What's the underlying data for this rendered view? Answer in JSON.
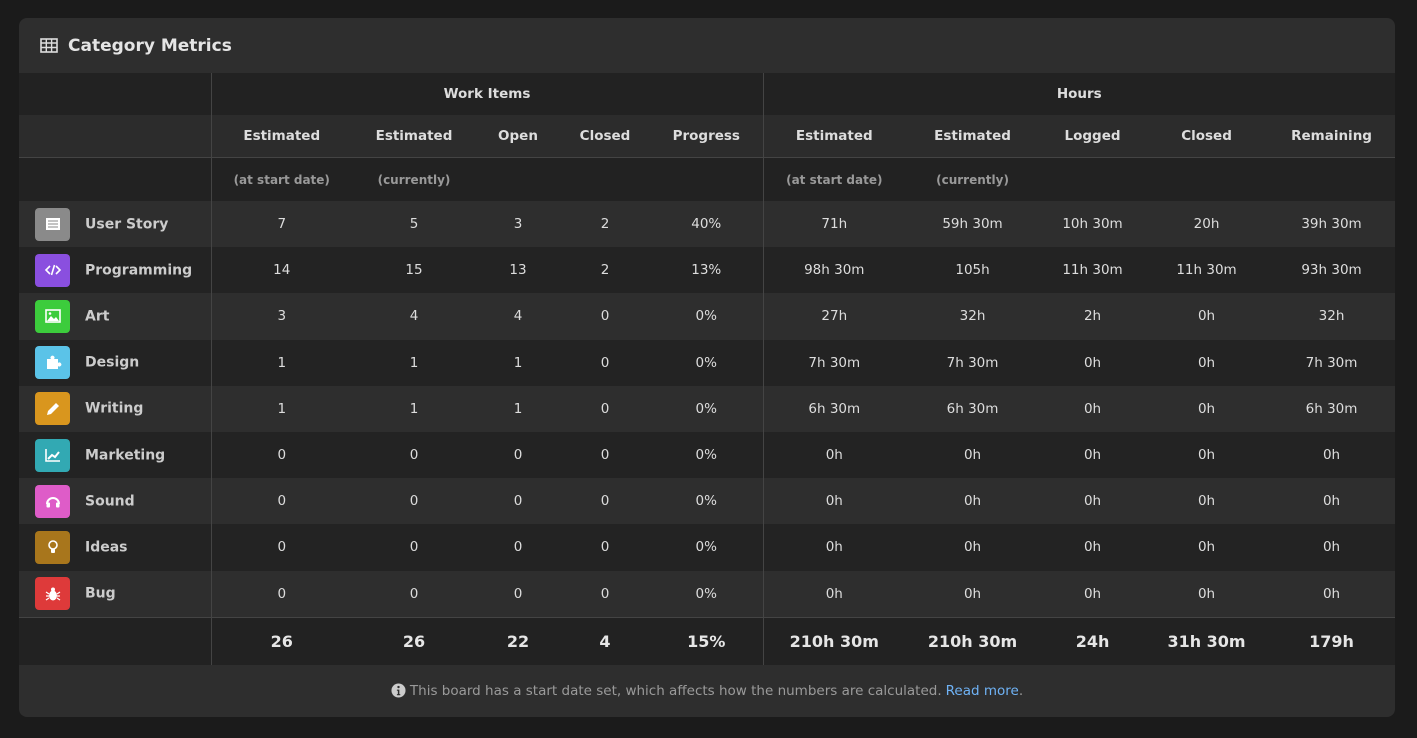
{
  "title": "Category Metrics",
  "title_icon": "table-icon",
  "groups": {
    "blank": "",
    "work_items": "Work Items",
    "hours": "Hours"
  },
  "columns": [
    "Estimated",
    "Estimated",
    "Open",
    "Closed",
    "Progress",
    "Estimated",
    "Estimated",
    "Logged",
    "Closed",
    "Remaining"
  ],
  "subcolumns": [
    "(at start date)",
    "(currently)",
    "",
    "",
    "",
    "(at start date)",
    "(currently)",
    "",
    "",
    ""
  ],
  "rows": [
    {
      "name": "User Story",
      "icon": "list-icon",
      "color": "#8a8a8a",
      "values": [
        "7",
        "5",
        "3",
        "2",
        "40%",
        "71h",
        "59h 30m",
        "10h 30m",
        "20h",
        "39h 30m"
      ]
    },
    {
      "name": "Programming",
      "icon": "code-icon",
      "color": "#8a4fdf",
      "values": [
        "14",
        "15",
        "13",
        "2",
        "13%",
        "98h 30m",
        "105h",
        "11h 30m",
        "11h 30m",
        "93h 30m"
      ]
    },
    {
      "name": "Art",
      "icon": "image-icon",
      "color": "#3ccc3c",
      "values": [
        "3",
        "4",
        "4",
        "0",
        "0%",
        "27h",
        "32h",
        "2h",
        "0h",
        "32h"
      ]
    },
    {
      "name": "Design",
      "icon": "puzzle-icon",
      "color": "#5bc3e8",
      "values": [
        "1",
        "1",
        "1",
        "0",
        "0%",
        "7h 30m",
        "7h 30m",
        "0h",
        "0h",
        "7h 30m"
      ]
    },
    {
      "name": "Writing",
      "icon": "pencil-icon",
      "color": "#d9961e",
      "values": [
        "1",
        "1",
        "1",
        "0",
        "0%",
        "6h 30m",
        "6h 30m",
        "0h",
        "0h",
        "6h 30m"
      ]
    },
    {
      "name": "Marketing",
      "icon": "chart-line-icon",
      "color": "#32a9b3",
      "values": [
        "0",
        "0",
        "0",
        "0",
        "0%",
        "0h",
        "0h",
        "0h",
        "0h",
        "0h"
      ]
    },
    {
      "name": "Sound",
      "icon": "headphones-icon",
      "color": "#de5cc8",
      "values": [
        "0",
        "0",
        "0",
        "0",
        "0%",
        "0h",
        "0h",
        "0h",
        "0h",
        "0h"
      ]
    },
    {
      "name": "Ideas",
      "icon": "lightbulb-icon",
      "color": "#a8761c",
      "values": [
        "0",
        "0",
        "0",
        "0",
        "0%",
        "0h",
        "0h",
        "0h",
        "0h",
        "0h"
      ]
    },
    {
      "name": "Bug",
      "icon": "bug-icon",
      "color": "#de3a3a",
      "values": [
        "0",
        "0",
        "0",
        "0",
        "0%",
        "0h",
        "0h",
        "0h",
        "0h",
        "0h"
      ]
    }
  ],
  "totals": [
    "26",
    "26",
    "22",
    "4",
    "15%",
    "210h 30m",
    "210h 30m",
    "24h",
    "31h 30m",
    "179h"
  ],
  "footer": {
    "icon": "info-circle-icon",
    "text": "This board has a start date set, which affects how the numbers are calculated.",
    "link": "Read more",
    "suffix": "."
  },
  "colors": {
    "link": "#6fb2f5",
    "background": "#2e2e2e"
  }
}
